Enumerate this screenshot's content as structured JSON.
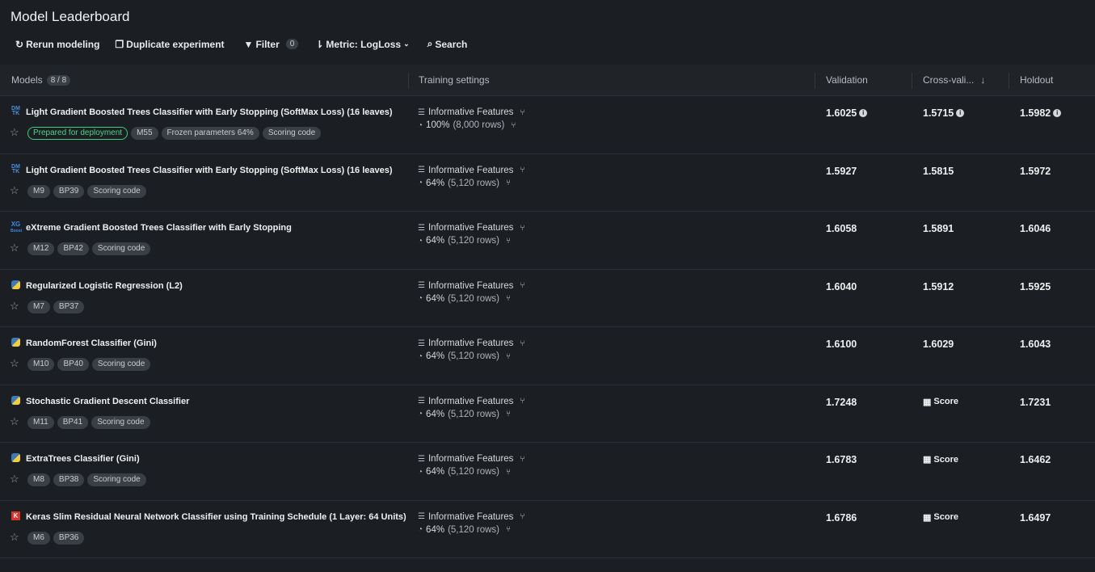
{
  "title": "Model Leaderboard",
  "toolbar": {
    "rerun": "Rerun modeling",
    "duplicate": "Duplicate experiment",
    "filter": "Filter",
    "filter_count": "0",
    "metric": "Metric: LogLoss",
    "search": "Search"
  },
  "columns": {
    "models": "Models",
    "models_count": "8 / 8",
    "training": "Training settings",
    "validation": "Validation",
    "cv": "Cross-vali...",
    "holdout": "Holdout"
  },
  "rows": [
    {
      "icon": "dmtk",
      "name": "Light Gradient Boosted Trees Classifier with Early Stopping (SoftMax Loss) (16 leaves)",
      "tags": [
        "Prepared for deployment",
        "M55",
        "Frozen parameters 64%",
        "Scoring code"
      ],
      "features": "Informative Features",
      "sample_pct": "100%",
      "sample_rows": "(8,000 rows)",
      "validation": "1.6025",
      "cv": "1.5715",
      "holdout": "1.5982",
      "info": true
    },
    {
      "icon": "dmtk",
      "name": "Light Gradient Boosted Trees Classifier with Early Stopping (SoftMax Loss) (16 leaves)",
      "tags": [
        "M9",
        "BP39",
        "Scoring code"
      ],
      "features": "Informative Features",
      "sample_pct": "64%",
      "sample_rows": "(5,120 rows)",
      "validation": "1.5927",
      "cv": "1.5815",
      "holdout": "1.5972"
    },
    {
      "icon": "xgboost",
      "name": "eXtreme Gradient Boosted Trees Classifier with Early Stopping",
      "tags": [
        "M12",
        "BP42",
        "Scoring code"
      ],
      "features": "Informative Features",
      "sample_pct": "64%",
      "sample_rows": "(5,120 rows)",
      "validation": "1.6058",
      "cv": "1.5891",
      "holdout": "1.6046"
    },
    {
      "icon": "python",
      "name": "Regularized Logistic Regression (L2)",
      "tags": [
        "M7",
        "BP37"
      ],
      "features": "Informative Features",
      "sample_pct": "64%",
      "sample_rows": "(5,120 rows)",
      "validation": "1.6040",
      "cv": "1.5912",
      "holdout": "1.5925"
    },
    {
      "icon": "python",
      "name": "RandomForest Classifier (Gini)",
      "tags": [
        "M10",
        "BP40",
        "Scoring code"
      ],
      "features": "Informative Features",
      "sample_pct": "64%",
      "sample_rows": "(5,120 rows)",
      "validation": "1.6100",
      "cv": "1.6029",
      "holdout": "1.6043"
    },
    {
      "icon": "python",
      "name": "Stochastic Gradient Descent Classifier",
      "tags": [
        "M11",
        "BP41",
        "Scoring code"
      ],
      "features": "Informative Features",
      "sample_pct": "64%",
      "sample_rows": "(5,120 rows)",
      "validation": "1.7248",
      "cv": "Score",
      "holdout": "1.7231"
    },
    {
      "icon": "python",
      "name": "ExtraTrees Classifier (Gini)",
      "tags": [
        "M8",
        "BP38",
        "Scoring code"
      ],
      "features": "Informative Features",
      "sample_pct": "64%",
      "sample_rows": "(5,120 rows)",
      "validation": "1.6783",
      "cv": "Score",
      "holdout": "1.6462"
    },
    {
      "icon": "keras",
      "name": "Keras Slim Residual Neural Network Classifier using Training Schedule (1 Layer: 64 Units)",
      "tags": [
        "M6",
        "BP36"
      ],
      "features": "Informative Features",
      "sample_pct": "64%",
      "sample_rows": "(5,120 rows)",
      "validation": "1.6786",
      "cv": "Score",
      "holdout": "1.6497"
    }
  ],
  "colors": {
    "background": "#1b1e22",
    "header": "#202328",
    "tag": "#3a3f46",
    "deploy_green": "#3ecf7a",
    "logo_blue": "#4a8fe0"
  }
}
